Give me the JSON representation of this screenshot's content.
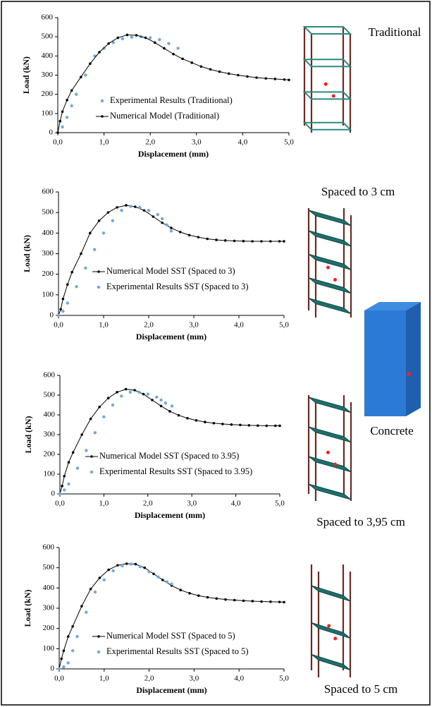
{
  "chart_data": [
    {
      "type": "line",
      "x_label": "Displacement (mm)",
      "y_label": "Load (kN)",
      "xlim": [
        0,
        5
      ],
      "xticks": [
        {
          "value": 0,
          "label": "0,0"
        },
        {
          "value": 1,
          "label": "1,0"
        },
        {
          "value": 2,
          "label": "2,0"
        },
        {
          "value": 3,
          "label": "3,0"
        },
        {
          "value": 4,
          "label": "4,0"
        },
        {
          "value": 5,
          "label": "5,0"
        }
      ],
      "ylim": [
        0,
        600
      ],
      "yticks": [
        0,
        100,
        200,
        300,
        400,
        500,
        600
      ],
      "series": [
        {
          "name": "Experimental Results (Traditional)",
          "color": "#6fa8dc",
          "marker": "dots",
          "x": [
            0,
            0.1,
            0.2,
            0.3,
            0.4,
            0.6,
            0.8,
            1.0,
            1.2,
            1.4,
            1.6,
            1.8,
            2.0,
            2.2,
            2.4,
            2.6
          ],
          "values": [
            0,
            30,
            80,
            140,
            200,
            300,
            400,
            440,
            470,
            490,
            498,
            500,
            495,
            485,
            465,
            440
          ]
        },
        {
          "name": "Numerical Model (Traditional)",
          "color": "#000000",
          "marker": "line",
          "x": [
            0,
            0.05,
            0.1,
            0.2,
            0.3,
            0.5,
            0.7,
            0.9,
            1.1,
            1.3,
            1.5,
            1.7,
            1.9,
            2.1,
            2.3,
            2.5,
            2.7,
            2.9,
            3.1,
            3.3,
            3.5,
            3.7,
            3.9,
            4.1,
            4.3,
            4.5,
            4.7,
            4.9,
            5.0
          ],
          "values": [
            0,
            60,
            110,
            170,
            220,
            290,
            360,
            420,
            465,
            495,
            510,
            508,
            495,
            470,
            440,
            410,
            385,
            365,
            345,
            330,
            318,
            308,
            300,
            293,
            287,
            283,
            280,
            277,
            275
          ]
        }
      ]
    },
    {
      "type": "line",
      "x_label": "Displacement (mm)",
      "y_label": "Load (kN)",
      "xlim": [
        0,
        5
      ],
      "xticks": [
        {
          "value": 0,
          "label": "0,0"
        },
        {
          "value": 1,
          "label": "1,0"
        },
        {
          "value": 2,
          "label": "2,0"
        },
        {
          "value": 3,
          "label": "3,0"
        },
        {
          "value": 4,
          "label": "4,0"
        },
        {
          "value": 5,
          "label": "5,0"
        }
      ],
      "ylim": [
        0,
        600
      ],
      "yticks": [
        0,
        100,
        200,
        300,
        400,
        500,
        600
      ],
      "series": [
        {
          "name": "Numerical Model SST (Spaced to 3)",
          "color": "#000000",
          "marker": "line",
          "x": [
            0,
            0.05,
            0.1,
            0.2,
            0.3,
            0.5,
            0.7,
            0.9,
            1.1,
            1.3,
            1.5,
            1.7,
            1.9,
            2.1,
            2.3,
            2.5,
            2.7,
            2.9,
            3.1,
            3.3,
            3.5,
            3.7,
            3.9,
            4.1,
            4.3,
            4.5,
            4.7,
            4.9,
            5.0
          ],
          "values": [
            0,
            30,
            80,
            150,
            210,
            300,
            400,
            460,
            500,
            525,
            535,
            528,
            510,
            480,
            450,
            425,
            405,
            390,
            380,
            372,
            367,
            364,
            362,
            361,
            360,
            360,
            360,
            360,
            360
          ]
        },
        {
          "name": "Experimental Results SST (Spaced to 3)",
          "color": "#6fa8dc",
          "marker": "dots",
          "x": [
            0,
            0.1,
            0.2,
            0.4,
            0.6,
            0.8,
            1.0,
            1.2,
            1.4,
            1.6,
            1.8,
            2.0,
            2.2,
            2.3,
            2.4,
            2.5
          ],
          "values": [
            0,
            20,
            60,
            140,
            230,
            320,
            400,
            460,
            510,
            530,
            525,
            510,
            490,
            470,
            440,
            410
          ]
        }
      ]
    },
    {
      "type": "line",
      "x_label": "Displacement (mm)",
      "y_label": "Load (kN)",
      "xlim": [
        0,
        5
      ],
      "xticks": [
        {
          "value": 0,
          "label": "0,0"
        },
        {
          "value": 1,
          "label": "1,0"
        },
        {
          "value": 2,
          "label": "2,0"
        },
        {
          "value": 3,
          "label": "3,0"
        },
        {
          "value": 4,
          "label": "4,0"
        },
        {
          "value": 5,
          "label": "5,0"
        }
      ],
      "ylim": [
        0,
        600
      ],
      "yticks": [
        0,
        100,
        200,
        300,
        400,
        500,
        600
      ],
      "series": [
        {
          "name": "Numerical Model SST (Spaced to 3.95)",
          "color": "#000000",
          "marker": "line",
          "x": [
            0,
            0.05,
            0.1,
            0.2,
            0.3,
            0.5,
            0.7,
            0.9,
            1.1,
            1.3,
            1.5,
            1.7,
            1.9,
            2.1,
            2.3,
            2.5,
            2.7,
            2.9,
            3.1,
            3.3,
            3.5,
            3.7,
            3.9,
            4.1,
            4.3,
            4.5,
            4.7,
            4.9,
            5.0
          ],
          "values": [
            0,
            40,
            90,
            160,
            210,
            300,
            380,
            440,
            485,
            515,
            530,
            525,
            505,
            475,
            445,
            418,
            398,
            383,
            372,
            364,
            358,
            354,
            351,
            349,
            347,
            346,
            345,
            345,
            345
          ]
        },
        {
          "name": "Experimental Results SST (Spaced to 3.95)",
          "color": "#6fa8dc",
          "marker": "dots",
          "x": [
            0,
            0.1,
            0.2,
            0.4,
            0.6,
            0.8,
            1.0,
            1.2,
            1.4,
            1.6,
            1.8,
            2.0,
            2.2,
            2.3,
            2.4,
            2.55
          ],
          "values": [
            0,
            20,
            50,
            130,
            220,
            310,
            390,
            450,
            495,
            515,
            515,
            505,
            490,
            475,
            460,
            445
          ]
        }
      ]
    },
    {
      "type": "line",
      "x_label": "Displacement (mm)",
      "y_label": "Load (kN)",
      "xlim": [
        0,
        5
      ],
      "xticks": [
        {
          "value": 0,
          "label": "0,0"
        },
        {
          "value": 1,
          "label": "1,0"
        },
        {
          "value": 2,
          "label": "2,0"
        },
        {
          "value": 3,
          "label": "3,0"
        },
        {
          "value": 4,
          "label": "4,0"
        },
        {
          "value": 5,
          "label": "5,0"
        }
      ],
      "ylim": [
        0,
        600
      ],
      "yticks": [
        0,
        100,
        200,
        300,
        400,
        500,
        600
      ],
      "series": [
        {
          "name": "Numerical Model SST (Spaced to 5)",
          "color": "#000000",
          "marker": "line",
          "x": [
            0,
            0.05,
            0.1,
            0.2,
            0.3,
            0.5,
            0.7,
            0.9,
            1.1,
            1.3,
            1.5,
            1.7,
            1.9,
            2.1,
            2.3,
            2.5,
            2.7,
            2.9,
            3.1,
            3.3,
            3.5,
            3.7,
            3.9,
            4.1,
            4.3,
            4.5,
            4.7,
            4.9,
            5.0
          ],
          "values": [
            0,
            50,
            90,
            160,
            210,
            310,
            395,
            450,
            490,
            512,
            520,
            518,
            500,
            470,
            440,
            412,
            390,
            374,
            362,
            354,
            348,
            343,
            340,
            337,
            335,
            333,
            332,
            331,
            330
          ]
        },
        {
          "name": "Experimental Results SST (Spaced to 5)",
          "color": "#6fa8dc",
          "marker": "dots",
          "x": [
            0,
            0.1,
            0.2,
            0.3,
            0.4,
            0.6,
            0.8,
            1.0,
            1.2,
            1.4,
            1.6,
            1.8,
            2.0,
            2.2,
            2.4,
            2.5
          ],
          "values": [
            0,
            10,
            30,
            90,
            160,
            280,
            380,
            440,
            485,
            510,
            518,
            505,
            480,
            455,
            430,
            420
          ]
        }
      ]
    }
  ],
  "figure_labels": [
    "Traditional",
    "Spaced to 3 cm",
    "Concrete",
    "Spaced to 3,95 cm",
    "Spaced to 5 cm"
  ]
}
